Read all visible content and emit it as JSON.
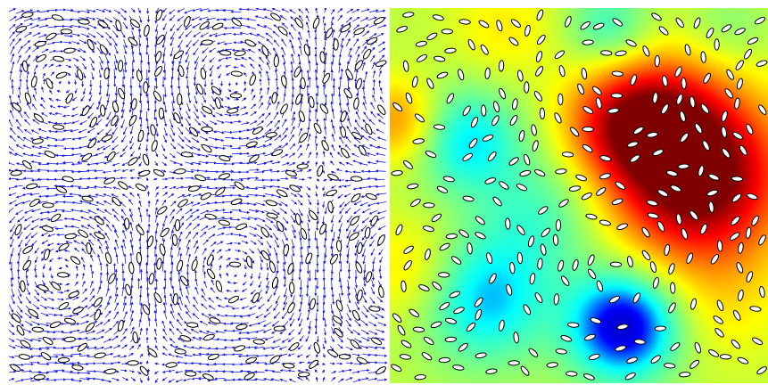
{
  "figure": {
    "left_panel": {
      "kind": "velocity-vector-field-with-ellipsoidal-particles",
      "arrow_color": "#1a1ae6",
      "particle_fill": "#ffffff",
      "particle_stroke": "#000000"
    },
    "right_panel": {
      "kind": "scalar-colormap-field-with-ellipsoidal-particles",
      "colormap": "jet",
      "colormap_stops": [
        "#00008f",
        "#0000ff",
        "#00ffff",
        "#7fff7f",
        "#ffff00",
        "#ff7f00",
        "#ff0000",
        "#800000"
      ],
      "particle_fill": "#ffffff",
      "particle_stroke": "#000000"
    }
  }
}
